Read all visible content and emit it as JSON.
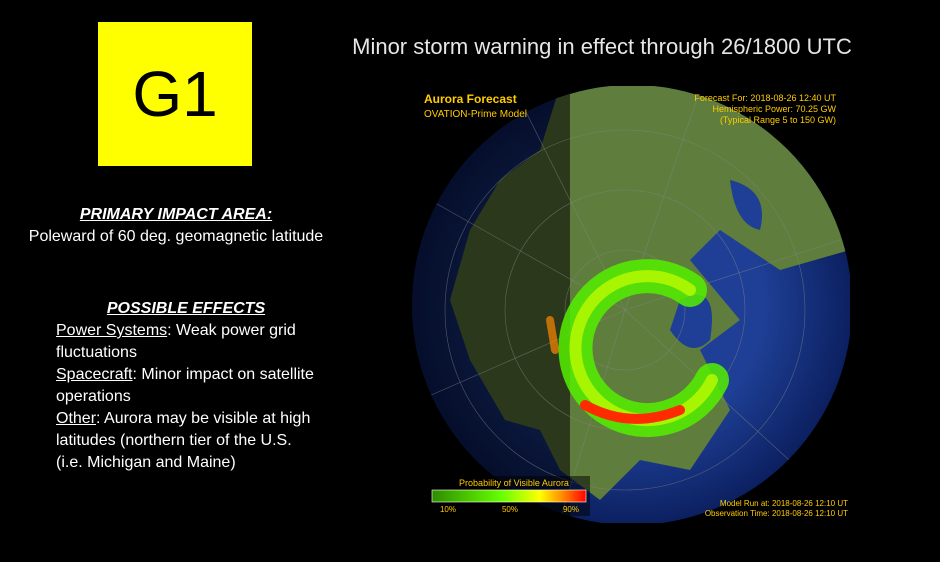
{
  "badge": "G1",
  "title": "Minor storm warning in effect through 26/1800 UTC",
  "impact": {
    "heading": "PRIMARY IMPACT AREA:",
    "text": "Poleward of 60 deg. geomagnetic latitude"
  },
  "effects": {
    "heading": "POSSIBLE EFFECTS",
    "items": [
      {
        "label": "Power Systems",
        "text": ": Weak power grid fluctuations"
      },
      {
        "label": "Spacecraft",
        "text": ": Minor impact on satellite operations"
      },
      {
        "label": "Other",
        "text": ": Aurora may be visible at high latitudes (northern tier of the U.S. (i.e. Michigan and Maine)"
      }
    ]
  },
  "map": {
    "title": "Aurora Forecast",
    "model": "OVATION-Prime Model",
    "forecast": "Forecast For: 2018-08-26 12:40 UT",
    "power": "Hemispheric Power: 70.25 GW",
    "range": "(Typical Range 5 to 150 GW)",
    "legend_title": "Probability of Visible Aurora",
    "legend_ticks": [
      "10%",
      "50%",
      "90%"
    ],
    "model_run": "Model Run at: 2018-08-26 12:10 UT",
    "obs_time": "Observation Time: 2018-08-26 12:10 UT"
  }
}
